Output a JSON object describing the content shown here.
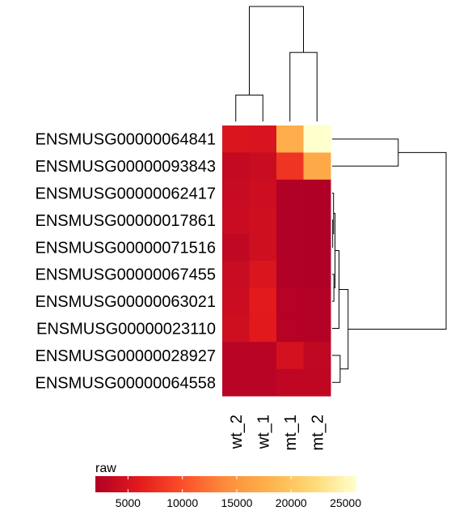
{
  "chart_data": {
    "type": "heatmap",
    "title": "",
    "columns": [
      "wt_2",
      "wt_1",
      "mt_1",
      "mt_2"
    ],
    "rows": [
      "ENSMUSG00000064841",
      "ENSMUSG00000093843",
      "ENSMUSG00000062417",
      "ENSMUSG00000017861",
      "ENSMUSG00000071516",
      "ENSMUSG00000067455",
      "ENSMUSG00000063021",
      "ENSMUSG00000023110",
      "ENSMUSG00000028927",
      "ENSMUSG00000064558"
    ],
    "values": [
      [
        5200,
        5000,
        17500,
        26000
      ],
      [
        3500,
        3800,
        8000,
        17000
      ],
      [
        3700,
        4200,
        2100,
        2000
      ],
      [
        3900,
        4300,
        2100,
        2000
      ],
      [
        3200,
        4300,
        2100,
        2000
      ],
      [
        3800,
        5200,
        2100,
        2000
      ],
      [
        4000,
        6000,
        2300,
        2200
      ],
      [
        4300,
        5900,
        2300,
        2200
      ],
      [
        2600,
        2600,
        4800,
        3200
      ],
      [
        2600,
        2600,
        3100,
        3100
      ]
    ],
    "color_scale": {
      "stops": [
        "#b10026",
        "#e31a1c",
        "#fc4e2a",
        "#fd8d3c",
        "#feb24c",
        "#fed976",
        "#ffffcc"
      ],
      "domain": [
        2000,
        26000
      ]
    },
    "legend": {
      "title": "raw",
      "ticks": [
        5000,
        10000,
        15000,
        20000,
        25000
      ],
      "placement": "bottom-left"
    },
    "column_dendrogram": {
      "merges": [
        {
          "left": "wt_2",
          "right": "wt_1",
          "height": 0.23
        },
        {
          "left": "mt_1",
          "right": "mt_2",
          "height": 0.6
        },
        {
          "left": "wt pair",
          "right": "mt pair",
          "height": 1.0
        }
      ]
    },
    "row_dendrogram": {
      "merges": [
        {
          "left": "ENSMUSG00000064841",
          "right": "ENSMUSG00000093843",
          "height": 0.58
        },
        {
          "left": "rows 3-10 cluster",
          "right": "top pair",
          "height": 1.0
        }
      ]
    }
  }
}
